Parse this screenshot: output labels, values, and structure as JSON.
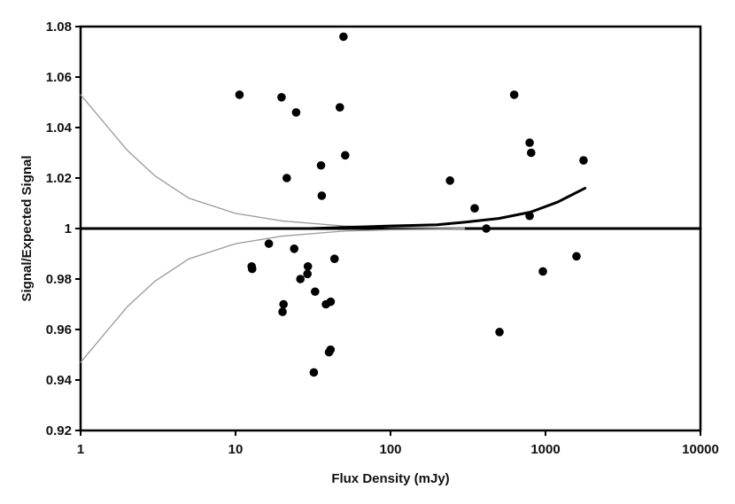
{
  "chart_data": {
    "type": "scatter",
    "title": "",
    "xlabel": "Flux Density (mJy)",
    "ylabel": "Signal/Expected Signal",
    "x_scale": "log",
    "xlim": [
      1,
      10000
    ],
    "ylim": [
      0.92,
      1.08
    ],
    "x_ticks": [
      1,
      10,
      100,
      1000,
      10000
    ],
    "x_tick_labels": [
      "1",
      "10",
      "100",
      "1000",
      "10000"
    ],
    "y_ticks": [
      0.92,
      0.94,
      0.96,
      0.98,
      1.0,
      1.02,
      1.04,
      1.06,
      1.08
    ],
    "y_tick_labels": [
      "0.92",
      "0.94",
      "0.96",
      "0.98",
      "1",
      "1.02",
      "1.04",
      "1.06",
      "1.08"
    ],
    "grid": false,
    "legend": "none",
    "points": [
      {
        "x": 10.6,
        "y": 1.053
      },
      {
        "x": 19.8,
        "y": 1.052
      },
      {
        "x": 24.6,
        "y": 1.046
      },
      {
        "x": 47.1,
        "y": 1.048
      },
      {
        "x": 49.7,
        "y": 1.076
      },
      {
        "x": 21.4,
        "y": 1.02
      },
      {
        "x": 35.6,
        "y": 1.025
      },
      {
        "x": 51.0,
        "y": 1.029
      },
      {
        "x": 36.0,
        "y": 1.013
      },
      {
        "x": 12.7,
        "y": 0.985
      },
      {
        "x": 12.8,
        "y": 0.984
      },
      {
        "x": 16.4,
        "y": 0.994
      },
      {
        "x": 23.9,
        "y": 0.992
      },
      {
        "x": 26.2,
        "y": 0.98
      },
      {
        "x": 29.3,
        "y": 0.985
      },
      {
        "x": 29.1,
        "y": 0.982
      },
      {
        "x": 20.4,
        "y": 0.97
      },
      {
        "x": 20.1,
        "y": 0.967
      },
      {
        "x": 32.6,
        "y": 0.975
      },
      {
        "x": 38.3,
        "y": 0.97
      },
      {
        "x": 41.1,
        "y": 0.971
      },
      {
        "x": 43.5,
        "y": 0.988
      },
      {
        "x": 32.0,
        "y": 0.943
      },
      {
        "x": 40.1,
        "y": 0.951
      },
      {
        "x": 41.0,
        "y": 0.952
      },
      {
        "x": 242,
        "y": 1.019
      },
      {
        "x": 349,
        "y": 1.008
      },
      {
        "x": 415,
        "y": 1.0
      },
      {
        "x": 505,
        "y": 0.959
      },
      {
        "x": 628,
        "y": 1.053
      },
      {
        "x": 790,
        "y": 1.034
      },
      {
        "x": 808,
        "y": 1.03
      },
      {
        "x": 790,
        "y": 1.005
      },
      {
        "x": 962,
        "y": 0.983
      },
      {
        "x": 1585,
        "y": 0.989
      },
      {
        "x": 1760,
        "y": 1.027
      }
    ],
    "lines": [
      {
        "kind": "reference",
        "color": "#000000",
        "points": [
          [
            1,
            1.0
          ],
          [
            10000,
            1.0
          ]
        ]
      },
      {
        "kind": "upper-envelope",
        "color": "#9a9a9a",
        "points": [
          [
            1,
            1.053
          ],
          [
            2,
            1.031
          ],
          [
            3,
            1.021
          ],
          [
            5,
            1.012
          ],
          [
            10,
            1.006
          ],
          [
            20,
            1.003
          ],
          [
            50,
            1.001
          ],
          [
            100,
            1.0005
          ],
          [
            300,
            1.0002
          ]
        ]
      },
      {
        "kind": "lower-envelope",
        "color": "#9a9a9a",
        "points": [
          [
            1,
            0.947
          ],
          [
            2,
            0.969
          ],
          [
            3,
            0.979
          ],
          [
            5,
            0.988
          ],
          [
            10,
            0.994
          ],
          [
            20,
            0.997
          ],
          [
            50,
            0.999
          ],
          [
            100,
            0.9995
          ],
          [
            300,
            0.9998
          ]
        ]
      },
      {
        "kind": "trend",
        "color": "#000000",
        "points": [
          [
            30,
            1.0
          ],
          [
            100,
            1.001
          ],
          [
            200,
            1.0015
          ],
          [
            300,
            1.0025
          ],
          [
            500,
            1.004
          ],
          [
            800,
            1.0065
          ],
          [
            1200,
            1.0105
          ],
          [
            1800,
            1.016
          ]
        ]
      }
    ]
  }
}
